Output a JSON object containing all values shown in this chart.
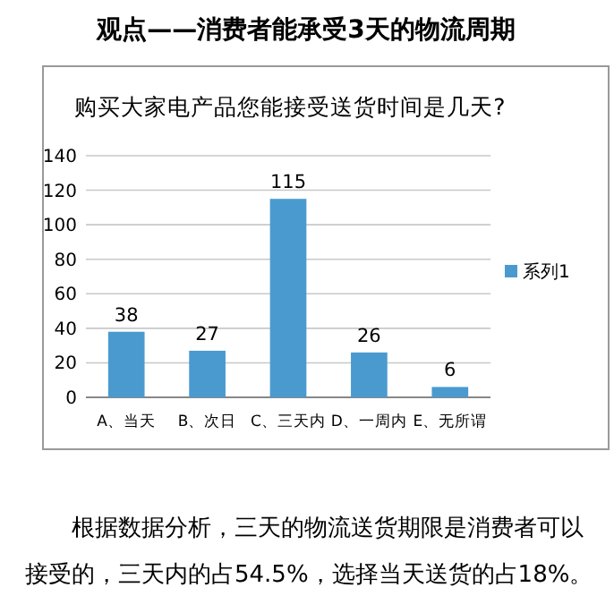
{
  "chart_data": {
    "type": "bar",
    "title": "观点——消费者能承受3天的物流周期",
    "subtitle": "购买大家电产品您能接受送货时间是几天?",
    "categories": [
      "A、当天",
      "B、次日",
      "C、三天内",
      "D、一周内",
      "E、无所谓"
    ],
    "series": [
      {
        "name": "系列1",
        "color": "#4a9ad0",
        "values": [
          38,
          27,
          115,
          26,
          6
        ]
      }
    ],
    "ylim": [
      0,
      140
    ],
    "yticks": [
      0,
      20,
      40,
      60,
      80,
      100,
      120,
      140
    ],
    "grid": "y",
    "legend": "right",
    "data_labels": true,
    "annotations": [
      "根据数据分析，三天的物流送货期限是消费者可以接受的，三天内的占54.5%，选择当天送货的占18%。"
    ]
  }
}
